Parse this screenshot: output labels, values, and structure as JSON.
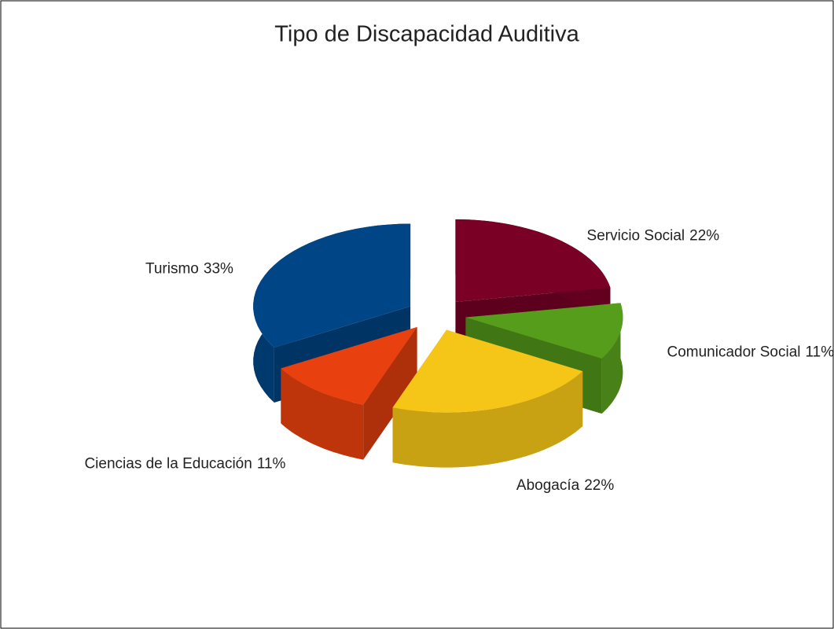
{
  "chart_data": {
    "type": "pie3d",
    "title": "Tipo de Discapacidad Auditiva",
    "categories": [
      "Servicio Social",
      "Comunicador Social",
      "Abogacía",
      "Ciencias de la Educación",
      "Turismo"
    ],
    "values": [
      22,
      11,
      22,
      11,
      33
    ],
    "value_labels": [
      "22%",
      "11%",
      "22%",
      "11%",
      "33%"
    ],
    "colors": [
      "#7a0026",
      "#579d1c",
      "#f5c518",
      "#e8400e",
      "#004586"
    ],
    "exploded": true
  }
}
